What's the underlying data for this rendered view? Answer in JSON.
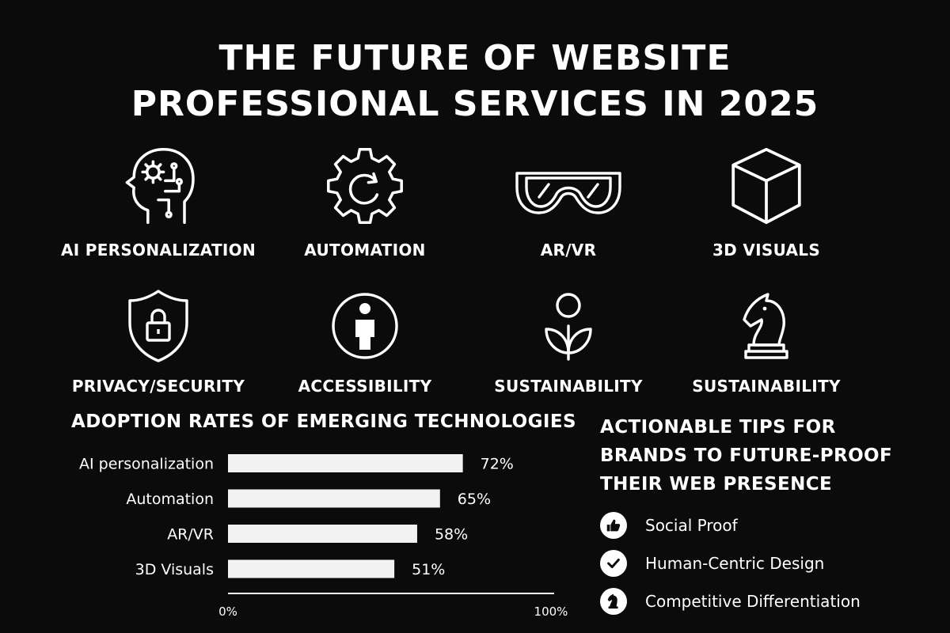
{
  "title": {
    "line1": "THE FUTURE OF WEBSITE",
    "line2": "PROFESSIONAL SERVICES IN 2025"
  },
  "icons": [
    {
      "label": "AI PERSONALIZATION",
      "icon": "head-gear-icon"
    },
    {
      "label": "AUTOMATION",
      "icon": "gear-cycle-icon"
    },
    {
      "label": "AR/VR",
      "icon": "vr-goggles-icon"
    },
    {
      "label": "3D VISUALS",
      "icon": "cube-icon"
    },
    {
      "label": "PRIVACY/SECURITY",
      "icon": "shield-lock-icon"
    },
    {
      "label": "ACCESSIBILITY",
      "icon": "person-circle-icon"
    },
    {
      "label": "SUSTAINABILITY",
      "icon": "sprout-icon"
    },
    {
      "label": "SUSTAINABILITY",
      "icon": "chess-knight-icon"
    }
  ],
  "chart_data": {
    "type": "bar",
    "orientation": "horizontal",
    "title": "ADOPTION RATES OF EMERGING TECHNOLOGIES",
    "categories": [
      "AI personalization",
      "Automation",
      "AR/VR",
      "3D Visuals"
    ],
    "values": [
      72,
      65,
      58,
      51
    ],
    "value_labels": [
      "72%",
      "65%",
      "58%",
      "51%"
    ],
    "xlim": [
      0,
      100
    ],
    "xticks": [
      "0%",
      "100%"
    ],
    "grid": false,
    "legend": "none",
    "bar_color": "#f2f2f2"
  },
  "tips": {
    "title_lines": [
      "ACTIONABLE TIPS FOR",
      "BRANDS TO FUTURE-PROOF",
      "THEIR WEB PRESENCE"
    ],
    "items": [
      {
        "label": "Social Proof",
        "icon": "thumbs-up-icon"
      },
      {
        "label": "Human-Centric Design",
        "icon": "check-icon"
      },
      {
        "label": "Competitive Differentiation",
        "icon": "chess-knight-icon"
      }
    ]
  },
  "colors": {
    "background": "#0b0b0b",
    "foreground": "#ffffff"
  }
}
